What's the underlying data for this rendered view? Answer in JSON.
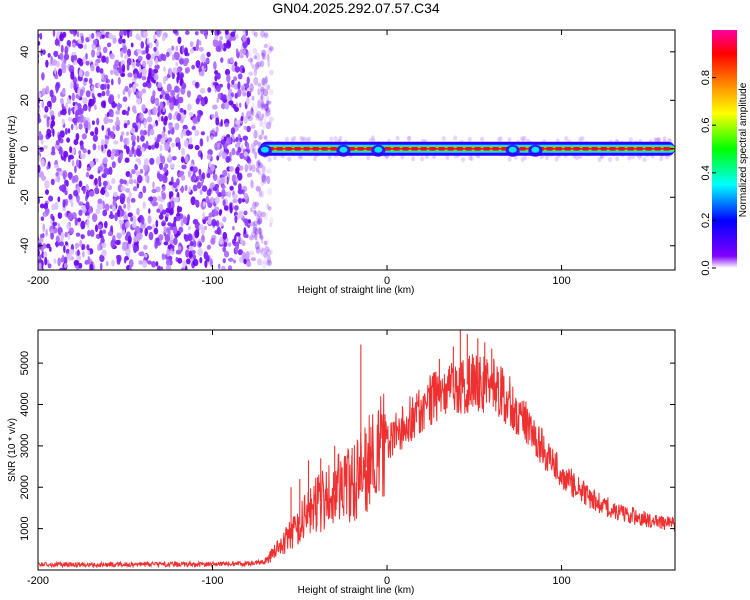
{
  "title": "GN04.2025.292.07.57.C34",
  "chart_data": [
    {
      "type": "heatmap",
      "name": "spectrogram",
      "xlabel": "Height of straight line (km)",
      "ylabel": "Frequency (Hz)",
      "xlim": [
        -200,
        165
      ],
      "ylim": [
        -50,
        49
      ],
      "xticks": [
        -200,
        -100,
        0,
        100
      ],
      "yticks": [
        -40,
        -20,
        0,
        20,
        40
      ],
      "noise_region_x": [
        -200,
        -73
      ],
      "signal_band_x": [
        -73,
        165
      ],
      "signal_center_hz": 0,
      "colorbar": {
        "label": "Normalized spectral amplitude",
        "range": [
          0.0,
          1.0
        ],
        "ticks": [
          "0.0",
          "0.2",
          "0.4",
          "0.6",
          "0.8"
        ],
        "colors": [
          "#ffffff",
          "#8000ff",
          "#0000ff",
          "#00ffff",
          "#00ff00",
          "#ffff00",
          "#ff8000",
          "#ff0000",
          "#ff00a0"
        ]
      }
    },
    {
      "type": "line",
      "name": "snr",
      "xlabel": "Height of straight line (km)",
      "ylabel": "SNR (10 * v/v)",
      "xlim": [
        -200,
        165
      ],
      "ylim": [
        0,
        5800
      ],
      "xticks": [
        -200,
        -100,
        0,
        100
      ],
      "yticks": [
        1000,
        2000,
        3000,
        4000,
        5000
      ],
      "color": "#ee3030",
      "x": [
        -200,
        -180,
        -160,
        -140,
        -120,
        -100,
        -80,
        -70,
        -65,
        -60,
        -55,
        -50,
        -45,
        -40,
        -35,
        -30,
        -25,
        -20,
        -15,
        -10,
        -5,
        0,
        10,
        20,
        30,
        40,
        50,
        60,
        70,
        80,
        90,
        100,
        110,
        120,
        130,
        140,
        150,
        160,
        165
      ],
      "values": [
        130,
        130,
        130,
        135,
        135,
        140,
        150,
        200,
        400,
        650,
        850,
        1100,
        1400,
        1600,
        1750,
        1900,
        2000,
        2050,
        2300,
        2600,
        2850,
        3100,
        3500,
        3900,
        4250,
        4450,
        4500,
        4450,
        4100,
        3500,
        2900,
        2350,
        1950,
        1650,
        1450,
        1320,
        1200,
        1130,
        1100
      ],
      "spikes": [
        {
          "x": -55,
          "y": 2000
        },
        {
          "x": -50,
          "y": 2200
        },
        {
          "x": -45,
          "y": 2650
        },
        {
          "x": -38,
          "y": 2700
        },
        {
          "x": -30,
          "y": 3000
        },
        {
          "x": -24,
          "y": 2600
        },
        {
          "x": -20,
          "y": 2950
        },
        {
          "x": -15,
          "y": 5450
        },
        {
          "x": -12,
          "y": 3300
        },
        {
          "x": 30,
          "y": 5100
        },
        {
          "x": 38,
          "y": 5400
        },
        {
          "x": 42,
          "y": 5850
        },
        {
          "x": 46,
          "y": 5700
        },
        {
          "x": 52,
          "y": 5600
        },
        {
          "x": 56,
          "y": 5500
        },
        {
          "x": 60,
          "y": 5350
        }
      ]
    }
  ]
}
